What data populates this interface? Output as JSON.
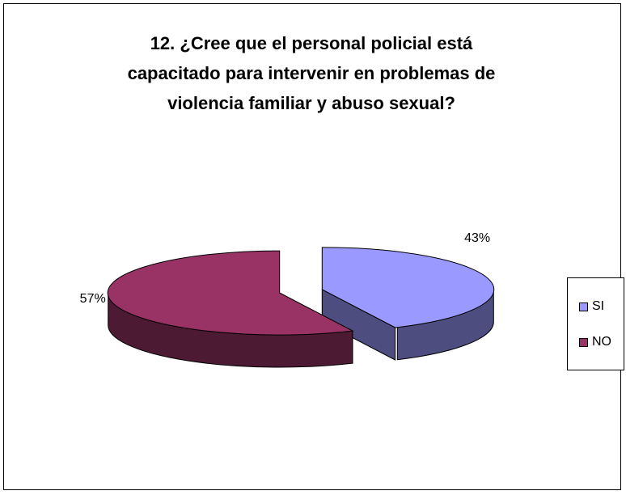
{
  "chart_data": {
    "type": "pie",
    "style": "3d-exploded",
    "title_lines": [
      "12. ¿Cree que el personal policial está",
      "capacitado para intervenir en problemas de",
      "violencia familiar y abuso sexual?"
    ],
    "slices": [
      {
        "name": "SI",
        "value": 43,
        "label": "43%",
        "color": "#9999ff",
        "side_color": "#4d4d80"
      },
      {
        "name": "NO",
        "value": 57,
        "label": "57%",
        "color": "#993366",
        "side_color": "#4d1a33"
      }
    ],
    "legend": {
      "position": "right",
      "items": [
        "SI",
        "NO"
      ]
    }
  }
}
